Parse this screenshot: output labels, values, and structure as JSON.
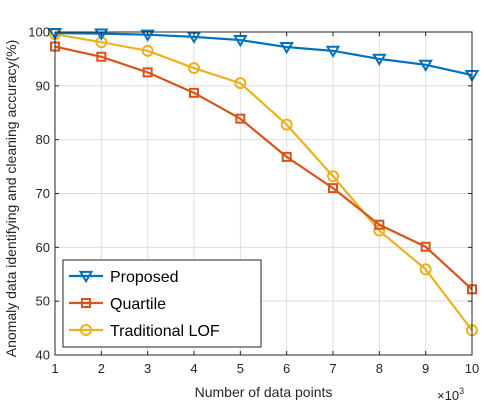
{
  "chart_data": {
    "type": "line",
    "title": "",
    "xlabel": "Number of data points",
    "ylabel": "Anomaly data identifying and cleaning accuracy(%)",
    "x_scale_factor": {
      "base": "×10",
      "exponent": "3"
    },
    "x": [
      1,
      2,
      3,
      4,
      5,
      6,
      7,
      8,
      9,
      10
    ],
    "xlim": [
      1,
      10
    ],
    "ylim": [
      40,
      100
    ],
    "x_ticks": [
      1,
      2,
      3,
      4,
      5,
      6,
      7,
      8,
      9,
      10
    ],
    "y_ticks": [
      40,
      50,
      60,
      70,
      80,
      90,
      100
    ],
    "grid": true,
    "legend_position": "bottom-left",
    "series": [
      {
        "name": "Proposed",
        "color": "#0072BD",
        "marker": "triangle-down",
        "values": [
          99.8,
          99.7,
          99.5,
          99.1,
          98.5,
          97.2,
          96.5,
          95.0,
          93.9,
          92.0
        ]
      },
      {
        "name": "Quartile",
        "color": "#D95319",
        "marker": "square",
        "values": [
          97.3,
          95.4,
          92.5,
          88.7,
          83.9,
          76.8,
          71.0,
          64.2,
          60.1,
          52.2
        ]
      },
      {
        "name": "Traditional LOF",
        "color": "#EDB120",
        "marker": "circle",
        "values": [
          99.6,
          98.1,
          96.5,
          93.3,
          90.5,
          82.8,
          73.2,
          63.1,
          55.9,
          44.6
        ]
      }
    ]
  }
}
